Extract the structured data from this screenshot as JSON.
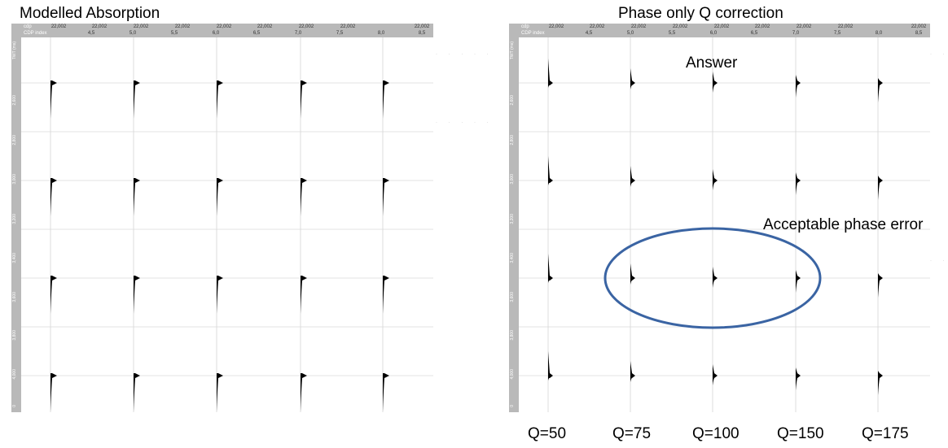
{
  "left_panel": {
    "title": "Modelled Absorption",
    "header": {
      "row1_label": "cdp",
      "row2_label": "CDP index",
      "cdp_values": [
        "22,002",
        "22,002",
        "22,002",
        "22,002",
        "22,002",
        "22,002",
        "22,002",
        "22,002",
        "22,002"
      ],
      "index_values": [
        "4,5",
        "5,0",
        "5,5",
        "6,0",
        "6,5",
        "7,0",
        "7,5",
        "8,0",
        "8,5"
      ]
    },
    "vaxis": {
      "label": "TWT (ms)",
      "ticks": [
        "2,600",
        "2,800",
        "3,000",
        "3,200",
        "3,400",
        "3,600",
        "3,800",
        "4,000",
        "0"
      ]
    }
  },
  "right_panel": {
    "title": "Phase only Q correction",
    "header": {
      "row1_label": "cdp",
      "row2_label": "CDP index",
      "cdp_values": [
        "22,002",
        "22,002",
        "22,002",
        "22,002",
        "22,002",
        "22,002",
        "22,002",
        "22,002",
        "22,002"
      ],
      "index_values": [
        "4,5",
        "5,0",
        "5,5",
        "6,0",
        "6,5",
        "7,0",
        "7,5",
        "8,0",
        "8,5"
      ]
    },
    "vaxis": {
      "label": "TWT (ms)",
      "ticks": [
        "2,600",
        "2,800",
        "3,000",
        "3,200",
        "3,400",
        "3,600",
        "3,800",
        "4,000",
        "0"
      ]
    },
    "annotations": {
      "answer": "Answer",
      "acceptable": "Acceptable phase error"
    },
    "q_labels": [
      "Q=50",
      "Q=75",
      "Q=100",
      "Q=150",
      "Q=175"
    ]
  },
  "colors": {
    "header_bg": "#b9b9b9",
    "wavelet": "#000000",
    "gridline": "#e3e3e3",
    "ellipse": "#3a64a3"
  }
}
